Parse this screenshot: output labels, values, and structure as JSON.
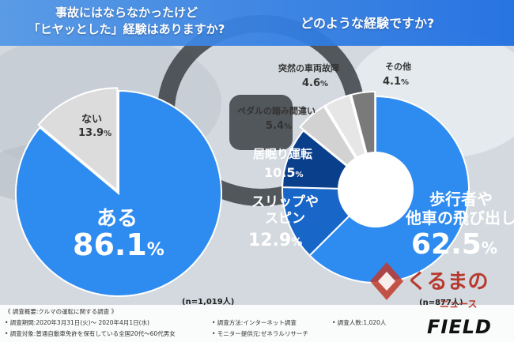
{
  "header": {
    "question1_line1": "事故にはならなかったけど",
    "question1_line2": "「ヒヤッとした」経験はありますか?",
    "question2": "どのような経験ですか?"
  },
  "colors": {
    "primary_blue": "#2e8bf0",
    "light_gray": "#dcdcdc",
    "header_blue": "#3a8fe6",
    "dark_blue": "#0a3f8c",
    "mid_blue": "#1766c8"
  },
  "chart_data": [
    {
      "type": "pie",
      "title": "事故にはならなかったけど「ヒヤッとした」経験はありますか?",
      "slices": [
        {
          "label": "ある",
          "value": 86.1,
          "color": "#2e8bf0"
        },
        {
          "label": "ない",
          "value": 13.9,
          "color": "#dcdcdc"
        }
      ],
      "note": "(n=1,019人)"
    },
    {
      "type": "pie",
      "title": "どのような経験ですか?",
      "slices": [
        {
          "label": "歩行者や他車の飛び出し",
          "value": 62.5,
          "color": "#2e8bf0"
        },
        {
          "label": "スリップやスピン",
          "value": 12.9,
          "color": "#1766c8"
        },
        {
          "label": "居眠り運転",
          "value": 10.5,
          "color": "#0a3f8c"
        },
        {
          "label": "ペダルの踏み間違い",
          "value": 5.4,
          "color": "#d2d2d2"
        },
        {
          "label": "突然の車両故障",
          "value": 4.6,
          "color": "#e6e6e6"
        },
        {
          "label": "その他",
          "value": 4.1,
          "color": "#7a7a7a"
        }
      ],
      "note": "(n=877人)"
    }
  ],
  "labels": {
    "aru": "ある",
    "aru_value": "86.1",
    "nai": "ない",
    "nai_value": "13.9",
    "percent": "%",
    "hokousha_1": "歩行者や",
    "hokousha_2": "他車の飛び出し",
    "hokousha_value": "62.5",
    "slip_1": "スリップや",
    "slip_2": "スピン",
    "slip_value": "12.9",
    "inemuri": "居眠り運転",
    "inemuri_value": "10.5",
    "pedal": "ペダルの踏み間違い",
    "pedal_value": "5.4",
    "kosho": "突然の車両故障",
    "kosho_value": "4.6",
    "sonota": "その他",
    "sonota_value": "4.1"
  },
  "footer": {
    "line1": "《 調査概要:クルマの運転に関する調査 》",
    "line2": "• 調査期間:2020年3月31日(火)〜 2020年4月1日(水)",
    "line3": "• 調査対象:普通自動車免許を保有している全国20代〜60代男女",
    "method": "• 調査方法:インターネット調査",
    "provider": "• モニター提供元:ゼネラルリサーチ",
    "count": "• 調査人数:1,020人"
  },
  "logos": {
    "kurumano": "くるまの",
    "news": "ニュース",
    "field": "FIELD"
  }
}
